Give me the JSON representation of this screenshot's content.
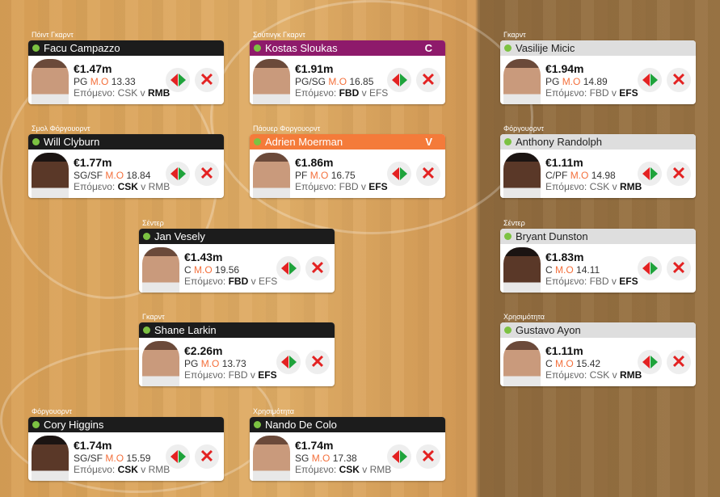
{
  "colors": {
    "captain": "#8e1a6b",
    "vice": "#f47b3a",
    "starter": "#1c1c1c",
    "bench": "#dedede",
    "mo": "#f4703c",
    "status_dot": "#7cc242"
  },
  "labels": {
    "mo": "M.O",
    "next": "Επόμενο:",
    "vs": "v"
  },
  "players": [
    {
      "position_label": "Πόιντ Γκαρντ",
      "name": "Facu Campazzo",
      "price": "€1.47m",
      "pos": "PG",
      "avg": "13.33",
      "home": "CSK",
      "away": "RMB",
      "bold": "away",
      "role": "starter",
      "badge": "",
      "skin": "light"
    },
    {
      "position_label": "Σούτινγκ Γκαρντ",
      "name": "Kostas Sloukas",
      "price": "€1.91m",
      "pos": "PG/SG",
      "avg": "16.85",
      "home": "FBD",
      "away": "EFS",
      "bold": "home",
      "role": "captain",
      "badge": "C",
      "skin": "light"
    },
    {
      "position_label": "Γκαρντ",
      "name": "Vasilije Micic",
      "price": "€1.94m",
      "pos": "PG",
      "avg": "14.89",
      "home": "FBD",
      "away": "EFS",
      "bold": "away",
      "role": "bench",
      "badge": "",
      "skin": "light"
    },
    {
      "position_label": "Σμολ Φόργουορντ",
      "name": "Will Clyburn",
      "price": "€1.77m",
      "pos": "SG/SF",
      "avg": "18.84",
      "home": "CSK",
      "away": "RMB",
      "bold": "home",
      "role": "starter",
      "badge": "",
      "skin": "dark"
    },
    {
      "position_label": "Πάουερ Φοργουορντ",
      "name": "Adrien Moerman",
      "price": "€1.86m",
      "pos": "PF",
      "avg": "16.75",
      "home": "FBD",
      "away": "EFS",
      "bold": "away",
      "role": "vice",
      "badge": "V",
      "skin": "light"
    },
    {
      "position_label": "Φόργουορντ",
      "name": "Anthony Randolph",
      "price": "€1.11m",
      "pos": "C/PF",
      "avg": "14.98",
      "home": "CSK",
      "away": "RMB",
      "bold": "away",
      "role": "bench",
      "badge": "",
      "skin": "dark"
    },
    {
      "position_label": "Σέντερ",
      "name": "Jan Vesely",
      "price": "€1.43m",
      "pos": "C",
      "avg": "19.56",
      "home": "FBD",
      "away": "EFS",
      "bold": "home",
      "role": "starter",
      "badge": "",
      "skin": "light"
    },
    {
      "position_label": "Σέντερ",
      "name": "Bryant Dunston",
      "price": "€1.83m",
      "pos": "C",
      "avg": "14.11",
      "home": "FBD",
      "away": "EFS",
      "bold": "away",
      "role": "bench",
      "badge": "",
      "skin": "dark"
    },
    {
      "position_label": "Γκαρντ",
      "name": "Shane Larkin",
      "price": "€2.26m",
      "pos": "PG",
      "avg": "13.73",
      "home": "FBD",
      "away": "EFS",
      "bold": "away",
      "role": "starter",
      "badge": "",
      "skin": "light"
    },
    {
      "position_label": "Χρησιμότητα",
      "name": "Gustavo Ayon",
      "price": "€1.11m",
      "pos": "C",
      "avg": "15.42",
      "home": "CSK",
      "away": "RMB",
      "bold": "away",
      "role": "bench",
      "badge": "",
      "skin": "light"
    },
    {
      "position_label": "Φόργουορντ",
      "name": "Cory Higgins",
      "price": "€1.74m",
      "pos": "SG/SF",
      "avg": "15.59",
      "home": "CSK",
      "away": "RMB",
      "bold": "home",
      "role": "starter",
      "badge": "",
      "skin": "dark"
    },
    {
      "position_label": "Χρησιμότητα",
      "name": "Nando De Colo",
      "price": "€1.74m",
      "pos": "SG",
      "avg": "17.38",
      "home": "CSK",
      "away": "RMB",
      "bold": "home",
      "role": "starter",
      "badge": "",
      "skin": "light"
    }
  ]
}
